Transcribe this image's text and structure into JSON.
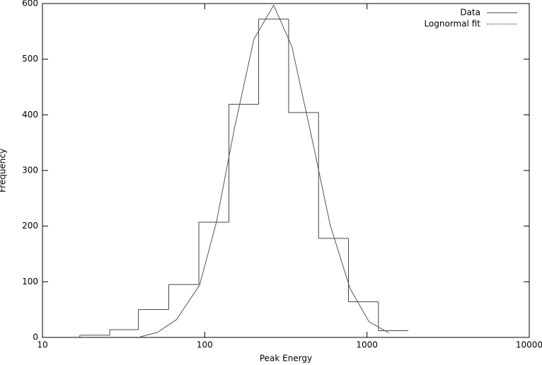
{
  "chart_data": {
    "type": "histogram",
    "xlabel": "Peak Energy",
    "ylabel": "Frequency",
    "xscale": "log",
    "xlim": [
      10,
      10000
    ],
    "xticks": [
      10,
      100,
      1000,
      10000
    ],
    "ylim": [
      0,
      600
    ],
    "yticks": [
      0,
      100,
      200,
      300,
      400,
      500,
      600
    ],
    "legend": "upper right",
    "series": [
      {
        "name": "Data",
        "type": "histogram",
        "color": "#444444",
        "bins": [
          17,
          26,
          39,
          60,
          92,
          141,
          215,
          329,
          503,
          769,
          1176,
          1797
        ],
        "values": [
          4,
          14,
          50,
          95,
          207,
          419,
          572,
          404,
          178,
          64,
          12
        ]
      },
      {
        "name": "Lognormal fit",
        "type": "line",
        "color": "#555555",
        "x": [
          40,
          51,
          67,
          93,
          118,
          152,
          201,
          266,
          345,
          462,
          593,
          786,
          1030,
          1365
        ],
        "values": [
          1,
          9,
          32,
          94,
          207,
          374,
          536,
          597,
          522,
          352,
          202,
          88,
          28,
          8
        ]
      }
    ]
  }
}
